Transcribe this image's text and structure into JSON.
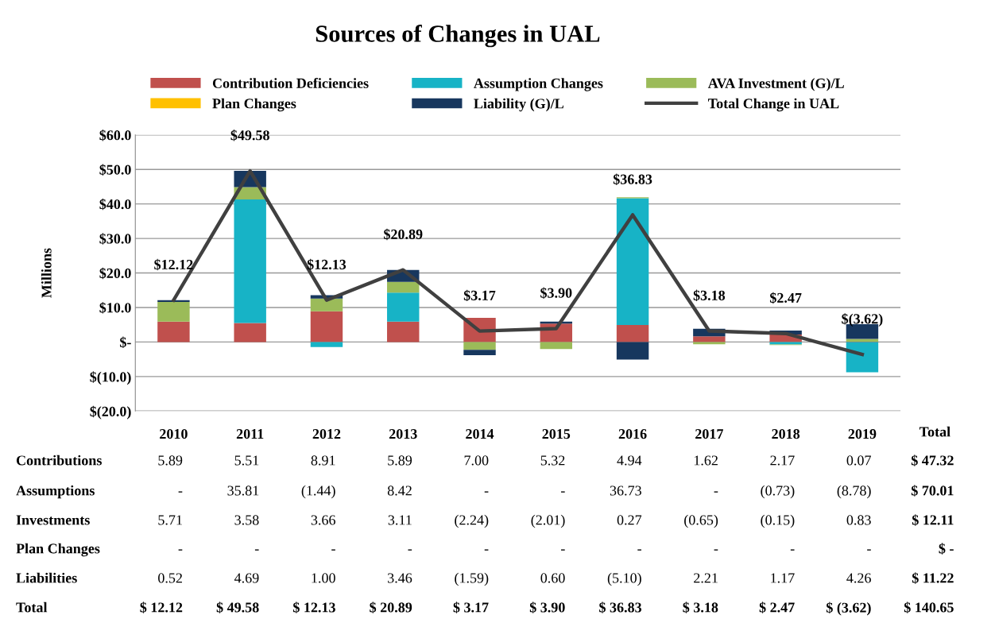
{
  "chart_data": {
    "type": "bar",
    "stacked": true,
    "title": "Sources of Changes in UAL",
    "ylabel": "Millions",
    "categories": [
      "2010",
      "2011",
      "2012",
      "2013",
      "2014",
      "2015",
      "2016",
      "2017",
      "2018",
      "2019"
    ],
    "series": [
      {
        "name": "Contribution Deficiencies",
        "color": "#c0504d",
        "values": [
          5.89,
          5.51,
          8.91,
          5.89,
          7.0,
          5.32,
          4.94,
          1.62,
          2.17,
          0.07
        ],
        "value_labels": [
          "5.89",
          "5.51",
          "8.91",
          "5.89",
          "7.00",
          "5.32",
          "4.94",
          "1.62",
          "2.17",
          "0.07"
        ]
      },
      {
        "name": "Assumption Changes",
        "color": "#17b3c6",
        "values": [
          0,
          35.81,
          -1.44,
          8.42,
          0,
          0,
          36.73,
          0,
          -0.73,
          -8.78
        ],
        "value_labels": [
          "-",
          "35.81",
          "(1.44)",
          "8.42",
          "-",
          "-",
          "36.73",
          "-",
          "(0.73)",
          "(8.78)"
        ]
      },
      {
        "name": "AVA Investment (G)/L",
        "color": "#9bbb59",
        "values": [
          5.71,
          3.58,
          3.66,
          3.11,
          -2.24,
          -2.01,
          0.27,
          -0.65,
          -0.15,
          0.83
        ],
        "value_labels": [
          "5.71",
          "3.58",
          "3.66",
          "3.11",
          "(2.24)",
          "(2.01)",
          "0.27",
          "(0.65)",
          "(0.15)",
          "0.83"
        ]
      },
      {
        "name": "Plan Changes",
        "color": "#ffc000",
        "values": [
          0,
          0,
          0,
          0,
          0,
          0,
          0,
          0,
          0,
          0
        ],
        "value_labels": [
          "-",
          "-",
          "-",
          "-",
          "-",
          "-",
          "-",
          "-",
          "-",
          "-"
        ]
      },
      {
        "name": "Liability (G)/L",
        "color": "#17375e",
        "values": [
          0.52,
          4.69,
          1.0,
          3.46,
          -1.59,
          0.6,
          -5.1,
          2.21,
          1.17,
          4.26
        ],
        "value_labels": [
          "0.52",
          "4.69",
          "1.00",
          "3.46",
          "(1.59)",
          "0.60",
          "(5.10)",
          "2.21",
          "1.17",
          "4.26"
        ]
      },
      {
        "name": "Total Change in UAL",
        "type": "line",
        "color": "#404040",
        "values": [
          12.12,
          49.58,
          12.13,
          20.89,
          3.17,
          3.9,
          36.83,
          3.18,
          2.47,
          -3.62
        ],
        "value_labels": [
          "$12.12",
          "$49.58",
          "$12.13",
          "$20.89",
          "$3.17",
          "$3.90",
          "$36.83",
          "$3.18",
          "$2.47",
          "$(3.62)"
        ]
      }
    ],
    "annotations": [
      "Total",
      "Contributions",
      "Assumptions",
      "Investments",
      "Plan Changes",
      "Liabilities",
      "Total",
      "$ 47.32",
      "$ 70.01",
      "$ 12.11",
      "$ -",
      "$ 11.22",
      "$ 140.65",
      "$ 12.12",
      "$ 49.58",
      "$ 12.13",
      "$ 20.89",
      "$ 3.17",
      "$ 3.90",
      "$ 36.83",
      "$ 3.18",
      "$ 2.47",
      "$ (3.62)"
    ],
    "ylim": [
      -20,
      60
    ],
    "yticks": [
      {
        "value": -20,
        "label": "$(20.0)"
      },
      {
        "value": -10,
        "label": "$(10.0)"
      },
      {
        "value": 0,
        "label": "$-"
      },
      {
        "value": 10,
        "label": "$10.0"
      },
      {
        "value": 20,
        "label": "$20.0"
      },
      {
        "value": 30,
        "label": "$30.0"
      },
      {
        "value": 40,
        "label": "$40.0"
      },
      {
        "value": 50,
        "label": "$50.0"
      },
      {
        "value": 60,
        "label": "$60.0"
      }
    ],
    "grid": "y",
    "legend": "top"
  }
}
